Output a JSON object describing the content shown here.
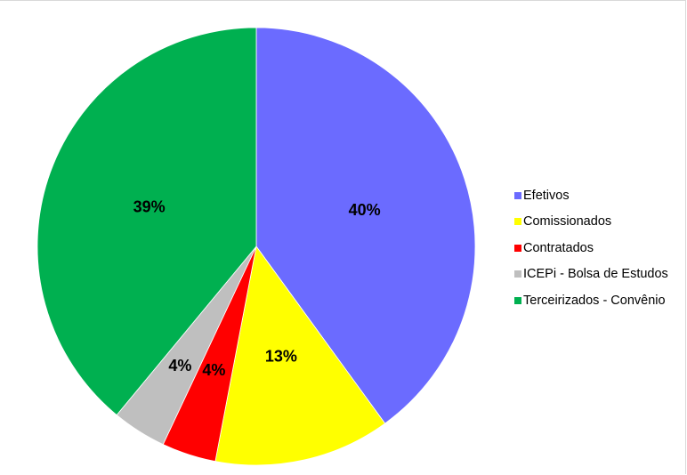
{
  "chart_data": {
    "type": "pie",
    "title": "",
    "legend_position": "right",
    "slices": [
      {
        "name": "Efetivos",
        "value": 40,
        "label": "40%",
        "color": "#6b6bff"
      },
      {
        "name": "Comissionados",
        "value": 13,
        "label": "13%",
        "color": "#ffff00"
      },
      {
        "name": "Contratados",
        "value": 4,
        "label": "4%",
        "color": "#ff0000"
      },
      {
        "name": "ICEPi - Bolsa de  Estudos",
        "value": 4,
        "label": "4%",
        "color": "#bfbfbf"
      },
      {
        "name": "Terceirizados - Convênio",
        "value": 39,
        "label": "39%",
        "color": "#00b050"
      }
    ]
  }
}
